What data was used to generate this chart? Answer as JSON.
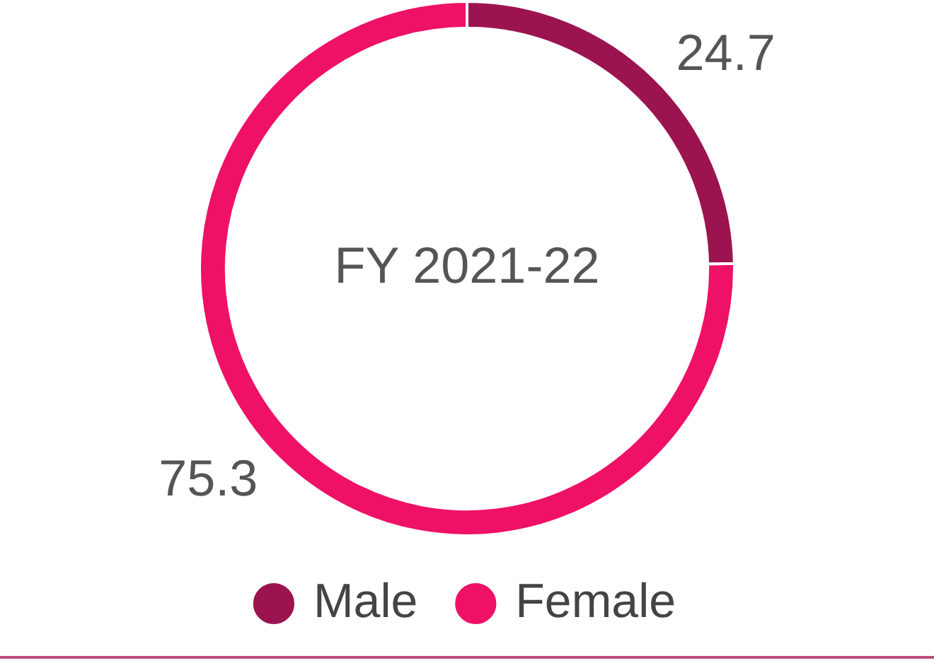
{
  "chart_data": {
    "type": "donut",
    "title": "FY 2021-22",
    "categories": [
      "Male",
      "Female"
    ],
    "values": [
      24.7,
      75.3
    ],
    "colors": [
      "#9b1450",
      "#ee1166"
    ],
    "data_labels": true,
    "legend": "bottom"
  }
}
